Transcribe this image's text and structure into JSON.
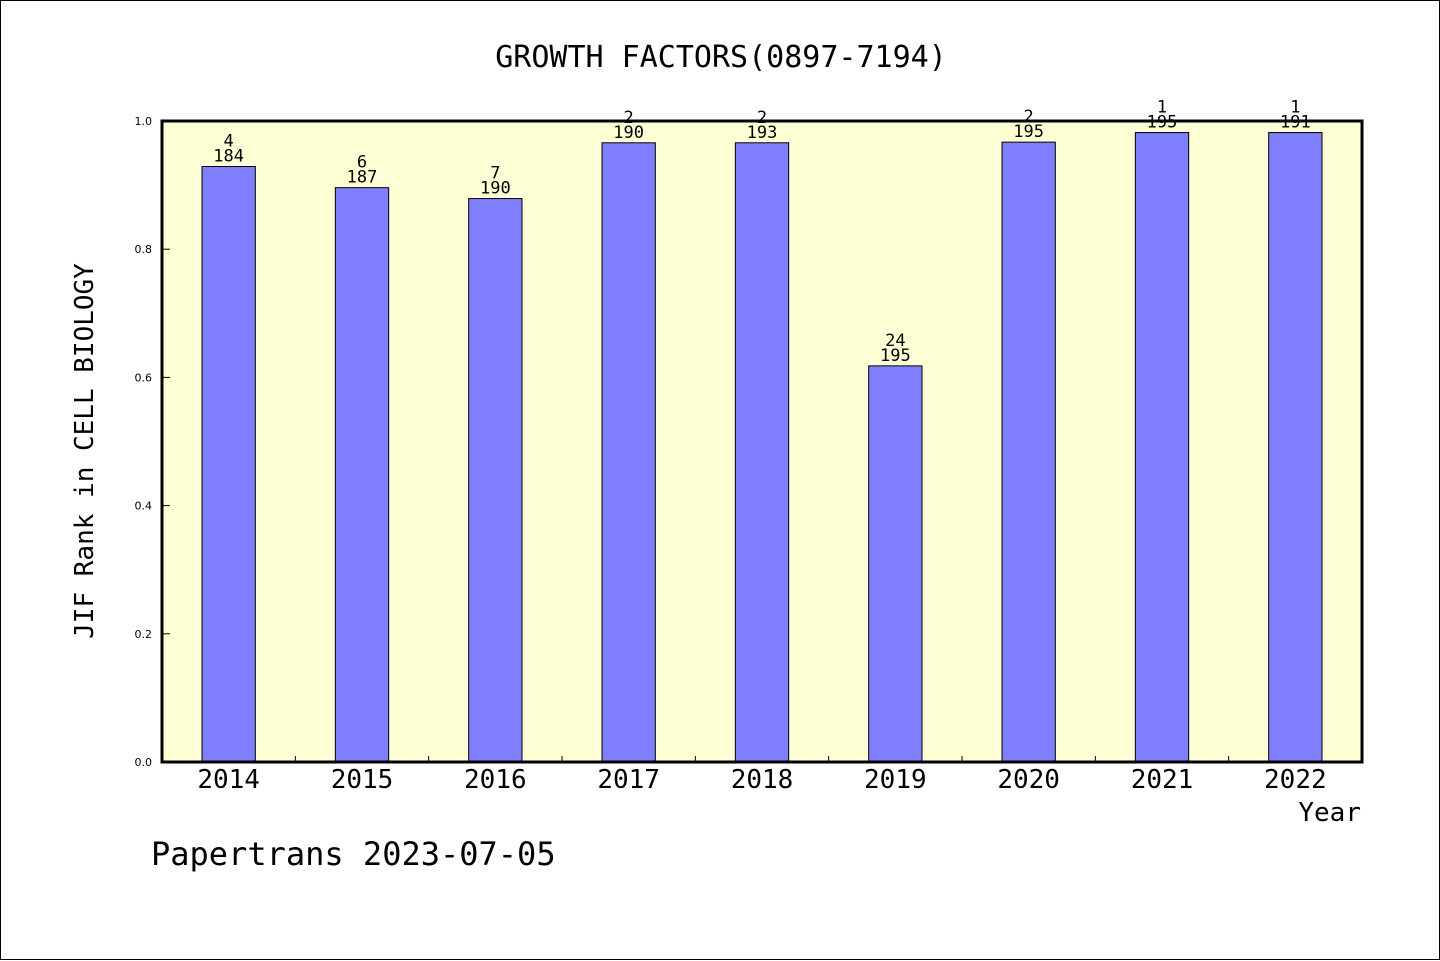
{
  "chart_data": {
    "type": "bar",
    "title": "GROWTH FACTORS(0897-7194)",
    "xlabel": "Year",
    "ylabel": "JIF Rank in CELL BIOLOGY",
    "ylim": [
      0,
      1.0
    ],
    "yticks": [
      "0.0",
      "0.2",
      "0.4",
      "0.6",
      "0.8",
      "1.0"
    ],
    "categories": [
      "2014",
      "2015",
      "2016",
      "2017",
      "2018",
      "2019",
      "2020",
      "2021",
      "2022"
    ],
    "values": [
      0.929,
      0.896,
      0.879,
      0.966,
      0.966,
      0.618,
      0.967,
      0.982,
      0.982
    ],
    "ranks": [
      "4",
      "6",
      "7",
      "2",
      "2",
      "24",
      "2",
      "1",
      "1"
    ],
    "totals": [
      "184",
      "187",
      "190",
      "190",
      "193",
      "195",
      "195",
      "195",
      "191"
    ],
    "grid": false,
    "legend": "none"
  },
  "footer": "Papertrans 2023-07-05",
  "colors": {
    "plot_background": "#ffffd5",
    "bar_fill": "#8080ff",
    "axis": "#000000"
  }
}
